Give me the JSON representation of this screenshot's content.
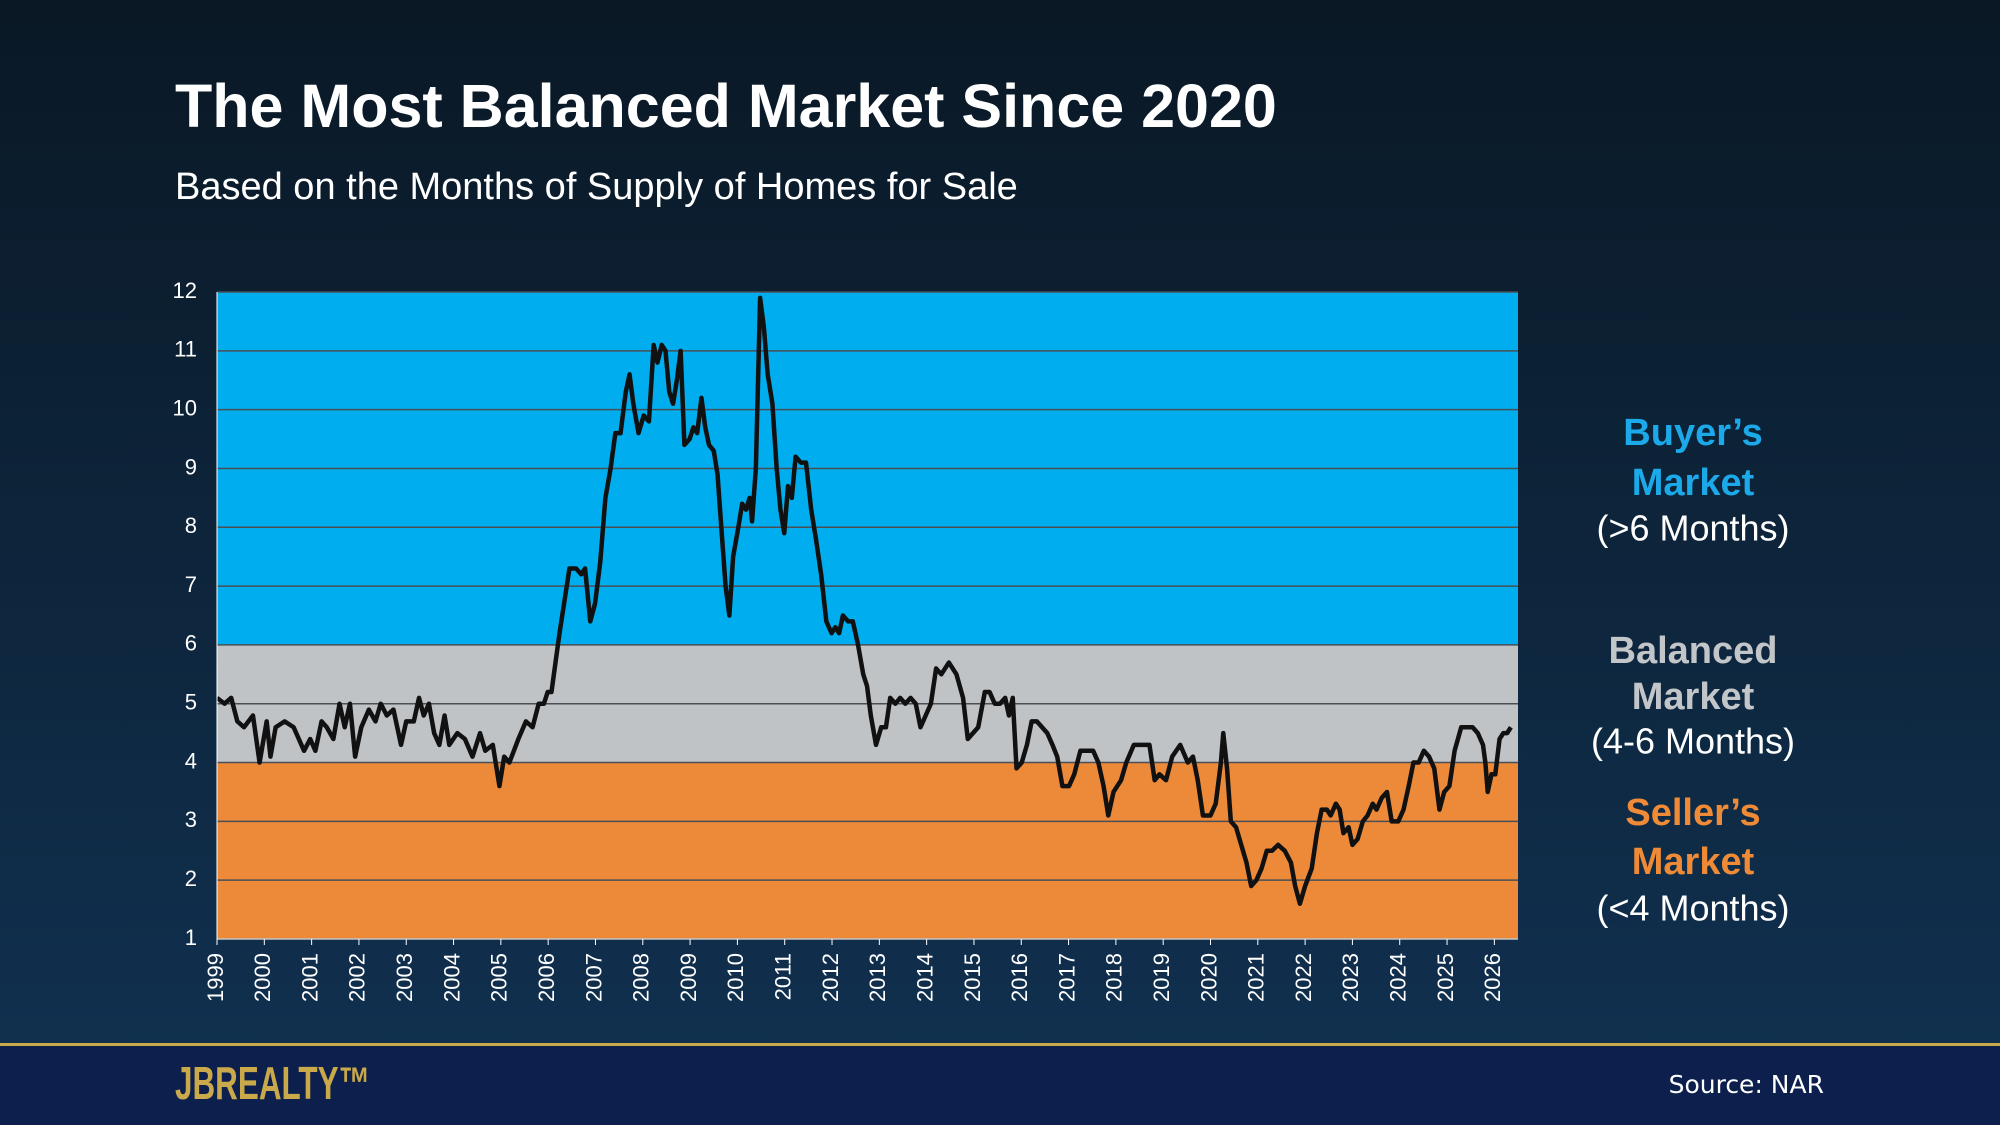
{
  "chart_data": {
    "type": "line",
    "title": "The Most Balanced Market Since 2020",
    "subtitle": "Based on the Months of Supply of Homes for Sale",
    "xlim": [
      1999,
      2026.5
    ],
    "xticks": [
      1999,
      2000,
      2001,
      2002,
      2003,
      2004,
      2005,
      2006,
      2007,
      2008,
      2009,
      2010,
      2011,
      2012,
      2013,
      2014,
      2015,
      2016,
      2017,
      2018,
      2019,
      2020,
      2021,
      2022,
      2023,
      2024,
      2025,
      2026
    ],
    "ylim": [
      1,
      12
    ],
    "yticks": [
      1,
      2,
      3,
      4,
      5,
      6,
      7,
      8,
      9,
      10,
      11,
      12
    ],
    "grid": true,
    "color": "#111111",
    "bands": [
      {
        "from": 6,
        "to": 12,
        "color": "#00aeef",
        "title": [
          "Buyer’s",
          "Market"
        ],
        "note": "(>6 Months)",
        "title_color": "#1ba9ea"
      },
      {
        "from": 4,
        "to": 6,
        "color": "#bfc3c6",
        "title": [
          "Balanced",
          "Market"
        ],
        "note": "(4-6 Months)",
        "title_color": "#c3c6c9"
      },
      {
        "from": 1,
        "to": 4,
        "color": "#ec8a3a",
        "title": [
          "Seller’s",
          "Market"
        ],
        "note": "(<4 Months)",
        "title_color": "#ef8a36"
      }
    ],
    "x": [
      1999.0,
      1999.16,
      1999.3,
      1999.43,
      1999.57,
      1999.76,
      1999.9,
      2000.05,
      2000.13,
      2000.24,
      2000.43,
      2000.62,
      2000.73,
      2000.84,
      2000.97,
      2001.08,
      2001.21,
      2001.32,
      2001.46,
      2001.59,
      2001.7,
      2001.81,
      2001.92,
      2002.05,
      2002.21,
      2002.35,
      2002.46,
      2002.59,
      2002.73,
      2002.89,
      2003.0,
      2003.16,
      2003.27,
      2003.37,
      2003.48,
      2003.59,
      2003.7,
      2003.81,
      2003.91,
      2004.08,
      2004.24,
      2004.4,
      2004.56,
      2004.67,
      2004.83,
      2004.97,
      2005.07,
      2005.18,
      2005.37,
      2005.53,
      2005.67,
      2005.8,
      2005.91,
      2005.99,
      2006.07,
      2006.24,
      2006.45,
      2006.59,
      2006.7,
      2006.78,
      2006.89,
      2006.99,
      2007.1,
      2007.21,
      2007.32,
      2007.42,
      2007.53,
      2007.64,
      2007.72,
      2007.8,
      2007.91,
      2008.02,
      2008.13,
      2008.23,
      2008.31,
      2008.4,
      2008.48,
      2008.56,
      2008.64,
      2008.72,
      2008.8,
      2008.88,
      2008.99,
      2009.07,
      2009.15,
      2009.24,
      2009.32,
      2009.4,
      2009.5,
      2009.58,
      2009.66,
      2009.75,
      2009.83,
      2009.91,
      2010.02,
      2010.1,
      2010.18,
      2010.26,
      2010.31,
      2010.39,
      2010.48,
      2010.56,
      2010.64,
      2010.74,
      2010.83,
      2010.91,
      2010.99,
      2011.07,
      2011.15,
      2011.23,
      2011.34,
      2011.45,
      2011.56,
      2011.66,
      2011.77,
      2011.88,
      2011.99,
      2012.07,
      2012.15,
      2012.23,
      2012.34,
      2012.44,
      2012.55,
      2012.66,
      2012.74,
      2012.82,
      2012.93,
      2013.04,
      2013.14,
      2013.23,
      2013.34,
      2013.44,
      2013.55,
      2013.66,
      2013.77,
      2013.87,
      2013.98,
      2014.09,
      2014.2,
      2014.31,
      2014.47,
      2014.63,
      2014.77,
      2014.87,
      2014.98,
      2015.09,
      2015.23,
      2015.33,
      2015.44,
      2015.55,
      2015.66,
      2015.74,
      2015.82,
      2015.9,
      2016.01,
      2016.12,
      2016.22,
      2016.33,
      2016.44,
      2016.55,
      2016.66,
      2016.76,
      2016.87,
      2017.01,
      2017.12,
      2017.25,
      2017.41,
      2017.52,
      2017.63,
      2017.74,
      2017.84,
      2017.95,
      2018.11,
      2018.22,
      2018.38,
      2018.55,
      2018.71,
      2018.82,
      2018.92,
      2019.06,
      2019.19,
      2019.36,
      2019.52,
      2019.63,
      2019.73,
      2019.84,
      2020.0,
      2020.11,
      2020.22,
      2020.27,
      2020.35,
      2020.43,
      2020.54,
      2020.65,
      2020.76,
      2020.86,
      2020.97,
      2021.08,
      2021.19,
      2021.3,
      2021.43,
      2021.57,
      2021.7,
      2021.79,
      2021.89,
      2022.0,
      2022.14,
      2022.25,
      2022.35,
      2022.46,
      2022.54,
      2022.65,
      2022.73,
      2022.81,
      2022.92,
      2023.0,
      2023.11,
      2023.22,
      2023.32,
      2023.43,
      2023.51,
      2023.62,
      2023.73,
      2023.83,
      2023.97,
      2024.08,
      2024.19,
      2024.29,
      2024.4,
      2024.51,
      2024.62,
      2024.73,
      2024.84,
      2024.94,
      2025.05,
      2025.16,
      2025.3,
      2025.41,
      2025.54,
      2025.65,
      2025.76,
      2025.81,
      2025.86,
      2025.94,
      2026.02,
      2026.11,
      2026.19,
      2026.27,
      2026.35
    ],
    "values": [
      5.1,
      5.0,
      5.1,
      4.7,
      4.6,
      4.8,
      4.0,
      4.7,
      4.1,
      4.6,
      4.7,
      4.6,
      4.4,
      4.2,
      4.4,
      4.2,
      4.7,
      4.6,
      4.4,
      5.0,
      4.6,
      5.0,
      4.1,
      4.6,
      4.9,
      4.7,
      5.0,
      4.8,
      4.9,
      4.3,
      4.7,
      4.7,
      5.1,
      4.8,
      5.0,
      4.5,
      4.3,
      4.8,
      4.3,
      4.5,
      4.4,
      4.1,
      4.5,
      4.2,
      4.3,
      3.6,
      4.1,
      4.0,
      4.4,
      4.7,
      4.6,
      5.0,
      5.0,
      5.2,
      5.2,
      6.2,
      7.3,
      7.3,
      7.2,
      7.3,
      6.4,
      6.7,
      7.4,
      8.5,
      9.0,
      9.6,
      9.6,
      10.3,
      10.6,
      10.1,
      9.6,
      9.9,
      9.8,
      11.1,
      10.8,
      11.1,
      11.0,
      10.3,
      10.1,
      10.5,
      11.0,
      9.4,
      9.5,
      9.7,
      9.6,
      10.2,
      9.7,
      9.4,
      9.3,
      8.9,
      8.0,
      7.0,
      6.5,
      7.5,
      8.0,
      8.4,
      8.3,
      8.5,
      8.1,
      9.0,
      11.9,
      11.4,
      10.6,
      10.1,
      9.0,
      8.3,
      7.9,
      8.7,
      8.5,
      9.2,
      9.1,
      9.1,
      8.3,
      7.8,
      7.2,
      6.4,
      6.2,
      6.3,
      6.2,
      6.5,
      6.4,
      6.4,
      6.0,
      5.5,
      5.3,
      4.8,
      4.3,
      4.6,
      4.6,
      5.1,
      5.0,
      5.1,
      5.0,
      5.1,
      5.0,
      4.6,
      4.8,
      5.0,
      5.6,
      5.5,
      5.7,
      5.5,
      5.1,
      4.4,
      4.5,
      4.6,
      5.2,
      5.2,
      5.0,
      5.0,
      5.1,
      4.8,
      5.1,
      3.9,
      4.0,
      4.3,
      4.7,
      4.7,
      4.6,
      4.5,
      4.3,
      4.1,
      3.6,
      3.6,
      3.8,
      4.2,
      4.2,
      4.2,
      4.0,
      3.6,
      3.1,
      3.5,
      3.7,
      4.0,
      4.3,
      4.3,
      4.3,
      3.7,
      3.8,
      3.7,
      4.1,
      4.3,
      4.0,
      4.1,
      3.7,
      3.1,
      3.1,
      3.3,
      4.0,
      4.5,
      3.9,
      3.0,
      2.9,
      2.6,
      2.3,
      1.9,
      2.0,
      2.2,
      2.5,
      2.5,
      2.6,
      2.5,
      2.3,
      1.9,
      1.6,
      1.9,
      2.2,
      2.8,
      3.2,
      3.2,
      3.1,
      3.3,
      3.2,
      2.8,
      2.9,
      2.6,
      2.7,
      3.0,
      3.1,
      3.3,
      3.2,
      3.4,
      3.5,
      3.0,
      3.0,
      3.2,
      3.6,
      4.0,
      4.0,
      4.2,
      4.1,
      3.9,
      3.2,
      3.5,
      3.6,
      4.2,
      4.6,
      4.6,
      4.6,
      4.5,
      4.3,
      4.0,
      3.5,
      3.8,
      3.8,
      4.4,
      4.5,
      4.5,
      4.6
    ]
  },
  "footer": {
    "logo": "JBREALTY™",
    "source": "Source: NAR"
  }
}
